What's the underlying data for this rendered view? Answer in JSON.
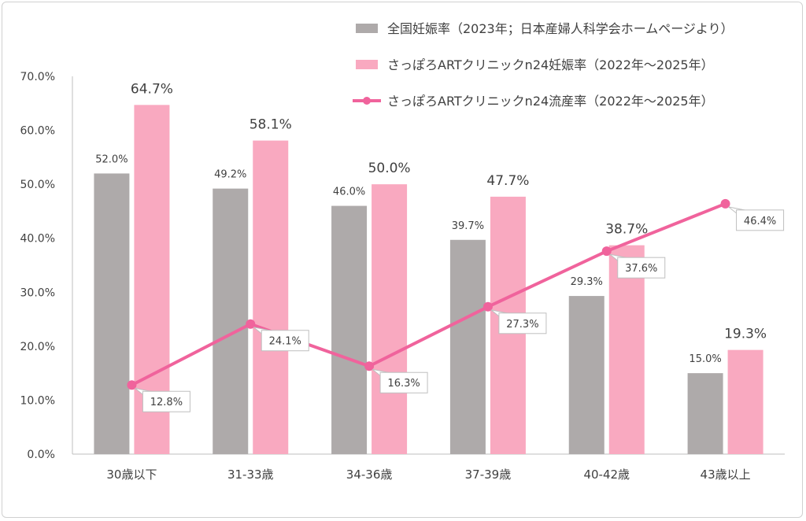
{
  "chart_data": {
    "type": "bar",
    "categories": [
      "30歳以下",
      "31-33歳",
      "34-36歳",
      "37-39歳",
      "40-42歳",
      "43歳以上"
    ],
    "series": [
      {
        "name": "全国妊娠率（2023年；日本産婦人科学会ホームページより）",
        "kind": "bar",
        "color": "#aeaaaa",
        "values": [
          52.0,
          49.2,
          46.0,
          39.7,
          29.3,
          15.0
        ]
      },
      {
        "name": "さっぽろARTクリニックn24妊娠率（2022年～2025年）",
        "kind": "bar",
        "color": "#f9a9c0",
        "values": [
          64.7,
          58.1,
          50.0,
          47.7,
          38.7,
          19.3
        ]
      },
      {
        "name": "さっぽろARTクリニックn24流産率（2022年～2025年）",
        "kind": "line",
        "color": "#f0639c",
        "values": [
          12.8,
          24.1,
          16.3,
          27.3,
          37.6,
          46.4
        ]
      }
    ],
    "ylim": [
      0,
      70
    ],
    "yticks": [
      "0.0%",
      "10.0%",
      "20.0%",
      "30.0%",
      "40.0%",
      "50.0%",
      "60.0%",
      "70.0%"
    ],
    "legend_position": "top-right",
    "grid": false
  }
}
